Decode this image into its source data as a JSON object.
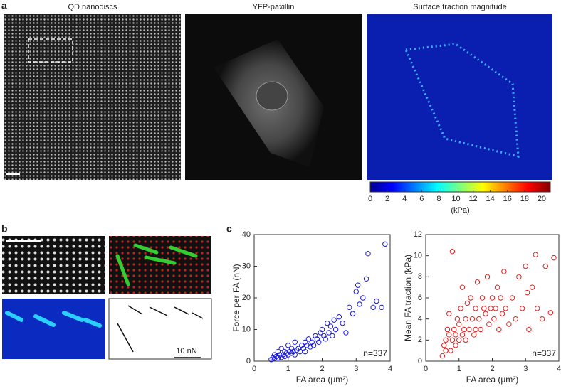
{
  "figure": {
    "panel_labels": [
      "a",
      "b",
      "c"
    ],
    "image_titles": [
      "QD nanodiscs",
      "YFP-paxillin",
      "Surface traction magnitude"
    ],
    "scale_label": "10 nN"
  },
  "chart_data": [
    {
      "type": "colorbar",
      "colormap": "jet",
      "xlim": [
        0,
        21
      ],
      "xticks": [
        0,
        2,
        4,
        6,
        8,
        10,
        12,
        14,
        16,
        18,
        20
      ],
      "xlabel": "(kPa)"
    },
    {
      "type": "scatter",
      "color": "#1a1adc",
      "xlabel": "FA area (μm²)",
      "ylabel": "Force per FA (nN)",
      "annotation": "n=337",
      "xlim": [
        0,
        4
      ],
      "ylim": [
        0,
        40
      ],
      "xticks": [
        0,
        1,
        2,
        3,
        4
      ],
      "yticks": [
        0,
        10,
        20,
        30,
        40
      ],
      "x": [
        0.5,
        0.55,
        0.6,
        0.6,
        0.65,
        0.7,
        0.7,
        0.75,
        0.8,
        0.8,
        0.85,
        0.9,
        0.9,
        0.95,
        1.0,
        1.0,
        1.05,
        1.1,
        1.1,
        1.15,
        1.2,
        1.2,
        1.25,
        1.3,
        1.35,
        1.4,
        1.45,
        1.5,
        1.5,
        1.55,
        1.6,
        1.65,
        1.7,
        1.75,
        1.8,
        1.85,
        1.9,
        1.95,
        2.0,
        2.05,
        2.1,
        2.15,
        2.2,
        2.25,
        2.3,
        2.35,
        2.4,
        2.5,
        2.6,
        2.7,
        2.8,
        2.9,
        3.0,
        3.05,
        3.1,
        3.2,
        3.3,
        3.35,
        3.5,
        3.6,
        3.75,
        3.85
      ],
      "values": [
        0.5,
        1,
        2,
        0.8,
        1.5,
        3,
        1,
        2,
        1.2,
        4,
        2,
        1.5,
        3,
        2.5,
        2,
        5,
        3,
        2.5,
        4,
        3,
        6,
        2,
        3.5,
        4,
        3,
        5,
        4,
        6,
        3,
        5,
        7,
        4.5,
        6,
        5,
        8,
        7,
        6,
        9,
        10,
        8,
        7,
        12,
        9,
        11,
        8,
        13,
        10,
        14,
        12,
        9,
        17,
        15,
        22,
        24,
        18,
        20,
        26,
        34,
        17,
        19,
        17,
        37
      ]
    },
    {
      "type": "scatter",
      "color": "#e02020",
      "xlabel": "FA area (μm²)",
      "ylabel": "Mean FA traction (kPa)",
      "annotation": "n=337",
      "xlim": [
        0,
        4
      ],
      "ylim": [
        0,
        12
      ],
      "xticks": [
        0,
        1,
        2,
        3,
        4
      ],
      "yticks": [
        0,
        2,
        4,
        6,
        8,
        10,
        12
      ],
      "x": [
        0.5,
        0.55,
        0.6,
        0.6,
        0.65,
        0.7,
        0.7,
        0.75,
        0.8,
        0.8,
        0.85,
        0.9,
        0.9,
        0.95,
        1.0,
        1.0,
        1.05,
        1.1,
        1.1,
        1.15,
        1.2,
        1.2,
        1.25,
        1.3,
        1.35,
        1.4,
        1.45,
        1.5,
        1.5,
        1.55,
        1.6,
        1.65,
        1.7,
        1.75,
        1.8,
        1.85,
        1.9,
        1.95,
        2.0,
        2.05,
        2.1,
        2.15,
        2.2,
        2.25,
        2.3,
        2.35,
        2.4,
        2.5,
        2.6,
        2.7,
        2.8,
        2.9,
        3.0,
        3.05,
        3.1,
        3.2,
        3.3,
        3.35,
        3.5,
        3.6,
        3.75,
        3.85
      ],
      "values": [
        0.5,
        1.5,
        2,
        1,
        3,
        2.5,
        4.5,
        1,
        2,
        10.4,
        3,
        1.5,
        2.5,
        4,
        2,
        3.5,
        5,
        2.5,
        7,
        3,
        4,
        2,
        5.5,
        3,
        6,
        4,
        2.5,
        5,
        3,
        7.5,
        4,
        3,
        6,
        5,
        4.5,
        8,
        3.5,
        5,
        6,
        4,
        5,
        7,
        3,
        6,
        4.5,
        8.5,
        5,
        3.5,
        6,
        4,
        8,
        5,
        9,
        6.5,
        3,
        7,
        10.1,
        5,
        4,
        9,
        4.6,
        9.8
      ]
    }
  ]
}
